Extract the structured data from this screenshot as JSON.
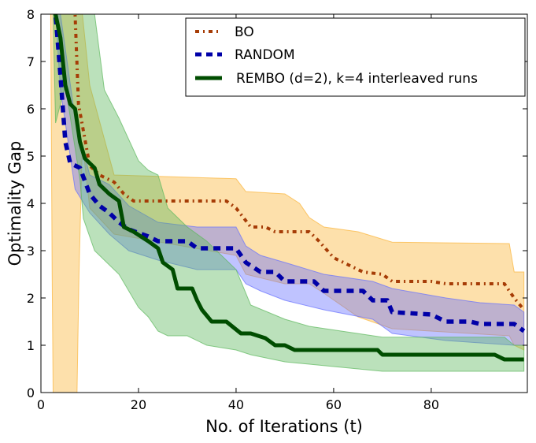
{
  "chart_data": {
    "type": "line",
    "title": "",
    "xlabel": "No. of Iterations (t)",
    "ylabel": "Optimality Gap",
    "xlim": [
      0,
      99.7
    ],
    "ylim": [
      0,
      8
    ],
    "xticks": [
      0,
      20,
      40,
      60,
      80
    ],
    "yticks": [
      0,
      1,
      2,
      3,
      4,
      5,
      6,
      7,
      8
    ],
    "grid": false,
    "legend_placement": "top-right",
    "series": [
      {
        "name": "BO",
        "style": "dash-dot",
        "color": "#a63c06",
        "band_color": "#fbb437",
        "x": [
          7,
          7.7,
          10,
          12,
          15,
          17,
          19,
          38,
          40,
          43,
          46,
          48,
          55,
          57,
          60,
          63,
          66,
          70,
          72,
          80,
          83,
          95,
          97,
          99
        ],
        "y": [
          8,
          6.1,
          4.8,
          4.6,
          4.45,
          4.2,
          4.05,
          4.05,
          3.9,
          3.5,
          3.5,
          3.4,
          3.4,
          3.2,
          2.85,
          2.7,
          2.55,
          2.5,
          2.35,
          2.35,
          2.3,
          2.3,
          2.0,
          1.75
        ],
        "band_x": [
          2,
          2.3,
          2.5,
          7.4,
          7.8,
          8.5,
          10,
          15,
          40,
          42,
          50,
          53,
          55,
          58,
          65,
          72,
          96,
          97,
          99
        ],
        "band_upper": [
          8,
          8,
          8,
          8,
          8,
          8,
          6.5,
          4.6,
          4.52,
          4.25,
          4.2,
          4.0,
          3.7,
          3.5,
          3.4,
          3.18,
          3.15,
          2.55,
          2.55
        ],
        "band_lower": [
          8,
          2.5,
          0,
          0,
          2.5,
          5.3,
          3.9,
          3.35,
          2.9,
          2.5,
          2.3,
          2.3,
          2.3,
          2.1,
          1.6,
          1.35,
          1.2,
          1.0,
          0.9
        ]
      },
      {
        "name": "RANDOM",
        "style": "dashed",
        "color": "#0000a8",
        "band_color": "#6670ff",
        "x": [
          3,
          4,
          5,
          6,
          8,
          10,
          12,
          14,
          16,
          18,
          22,
          24,
          30,
          32,
          40,
          42,
          45,
          48,
          50,
          56,
          58,
          66,
          68,
          71,
          72,
          80,
          83,
          88,
          90,
          97,
          99
        ],
        "y": [
          8,
          6.7,
          5.3,
          4.85,
          4.75,
          4.2,
          3.95,
          3.8,
          3.6,
          3.45,
          3.3,
          3.2,
          3.2,
          3.05,
          3.05,
          2.75,
          2.55,
          2.55,
          2.35,
          2.35,
          2.15,
          2.15,
          1.95,
          1.95,
          1.7,
          1.65,
          1.5,
          1.5,
          1.45,
          1.45,
          1.3
        ],
        "band_x": [
          3,
          4,
          7,
          10,
          14,
          18,
          24,
          32,
          40,
          42,
          45,
          50,
          58,
          68,
          72,
          83,
          90,
          97,
          99
        ],
        "band_upper": [
          8,
          8,
          5.8,
          4.6,
          4.4,
          3.95,
          3.6,
          3.5,
          3.5,
          3.1,
          2.9,
          2.75,
          2.5,
          2.35,
          2.2,
          2.0,
          1.9,
          1.85,
          1.7
        ],
        "band_lower": [
          8,
          6.4,
          4.3,
          3.8,
          3.35,
          3.0,
          2.8,
          2.6,
          2.6,
          2.3,
          2.15,
          1.95,
          1.75,
          1.55,
          1.25,
          1.1,
          1.05,
          1.0,
          1.0
        ]
      },
      {
        "name": "REMBO (d=2), k=4 interleaved runs",
        "style": "solid",
        "color": "#004d00",
        "band_color": "#5cb85c",
        "x": [
          3,
          4,
          5,
          6,
          7,
          8,
          9,
          11,
          12,
          14,
          16,
          17,
          19,
          22,
          24,
          25,
          27,
          28,
          31,
          32,
          33,
          35,
          38,
          41,
          43,
          46,
          48,
          50,
          52,
          69,
          70,
          93,
          95,
          99
        ],
        "y": [
          8,
          7.5,
          6.5,
          6.1,
          6.0,
          5.3,
          4.95,
          4.75,
          4.4,
          4.2,
          4.05,
          3.5,
          3.4,
          3.2,
          3.05,
          2.75,
          2.6,
          2.2,
          2.2,
          1.95,
          1.75,
          1.5,
          1.5,
          1.25,
          1.25,
          1.15,
          1.0,
          1.0,
          0.9,
          0.9,
          0.8,
          0.8,
          0.7,
          0.7
        ],
        "band_x": [
          2.5,
          3,
          5,
          8,
          8.7,
          11,
          13,
          16,
          20,
          22,
          24,
          26,
          30,
          34,
          40,
          43,
          50,
          55,
          70,
          95,
          97,
          99
        ],
        "band_upper": [
          8,
          8,
          8,
          8,
          8,
          8,
          6.4,
          5.8,
          4.9,
          4.7,
          4.6,
          3.9,
          3.5,
          3.2,
          2.6,
          1.85,
          1.55,
          1.4,
          1.17,
          1.17,
          1.0,
          1.0
        ],
        "band_lower": [
          8,
          5.7,
          6.5,
          4.5,
          3.68,
          3.0,
          2.8,
          2.5,
          1.8,
          1.6,
          1.3,
          1.2,
          1.2,
          1.0,
          0.9,
          0.8,
          0.65,
          0.6,
          0.45,
          0.45,
          0.45,
          0.45
        ]
      }
    ]
  }
}
